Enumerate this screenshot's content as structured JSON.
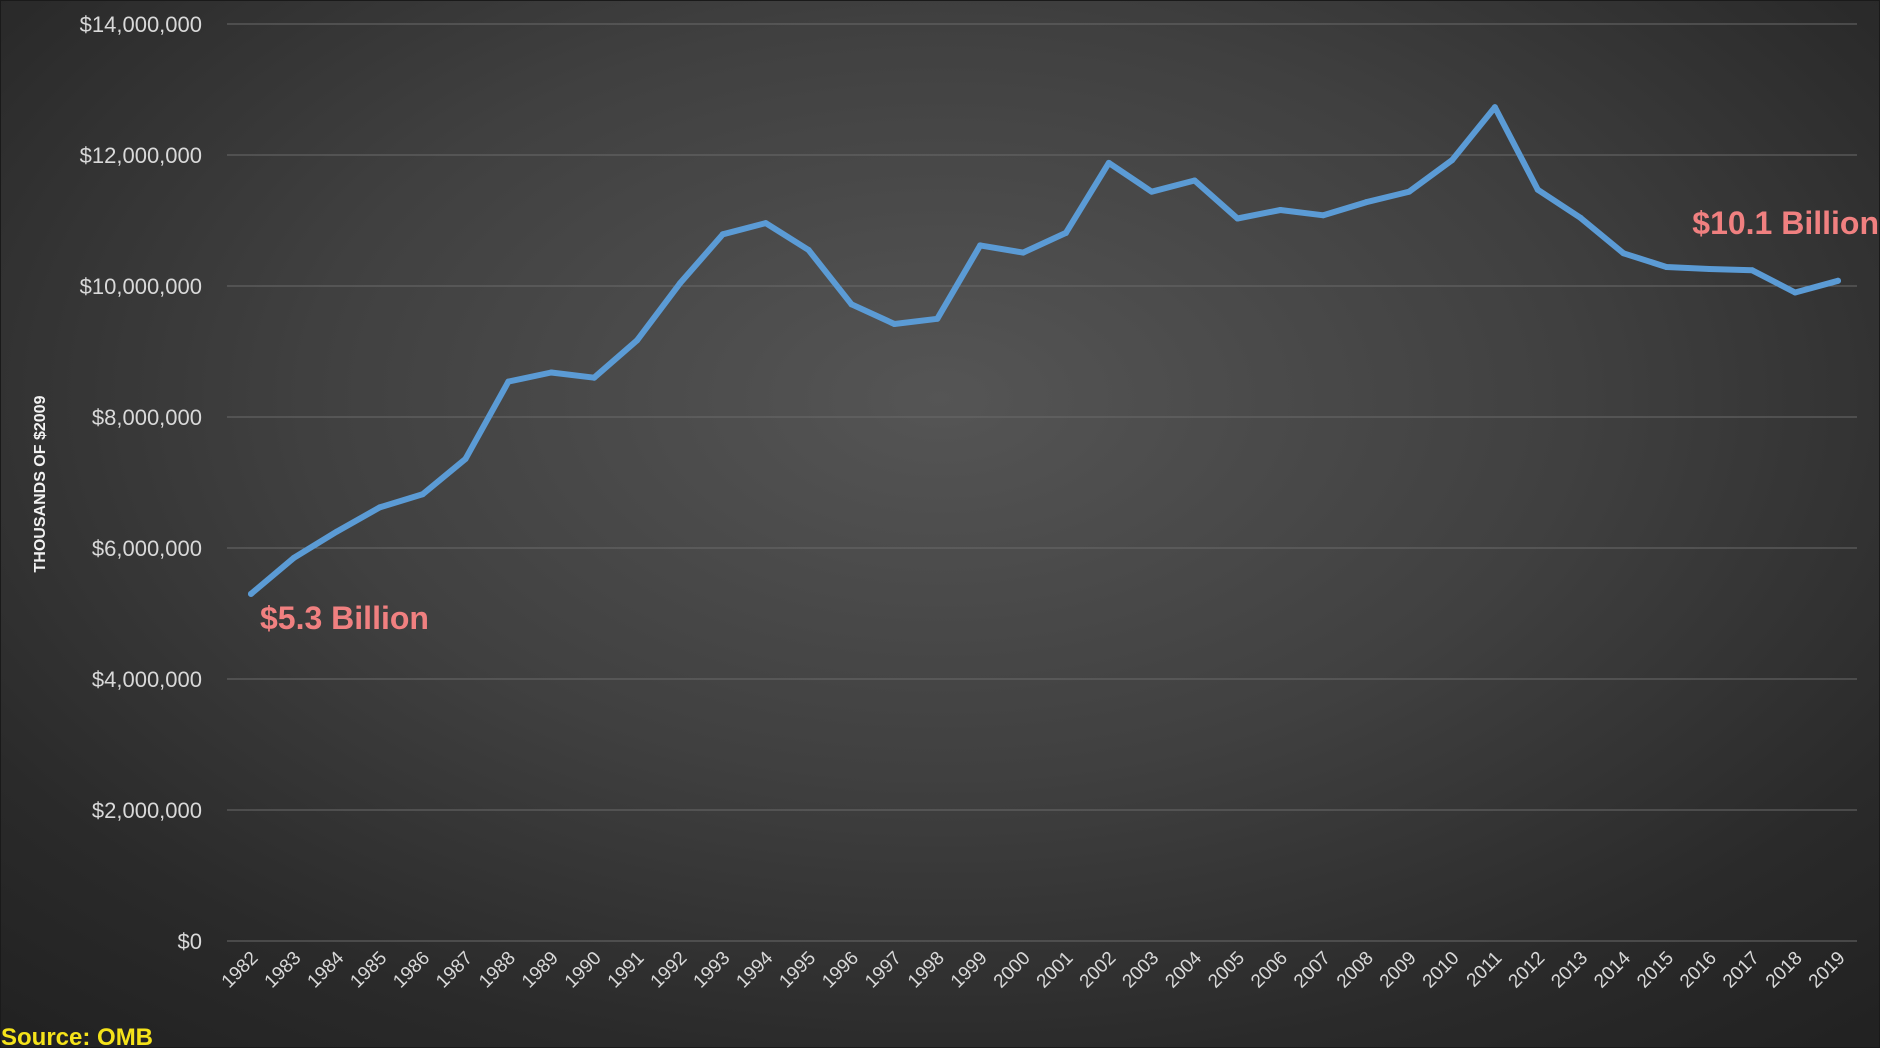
{
  "chart_data": {
    "type": "line",
    "title": "",
    "xlabel": "",
    "ylabel": "THOUSANDS OF $2009",
    "ylim": [
      0,
      14000000
    ],
    "y_ticks": [
      {
        "value": 0,
        "label": "$0"
      },
      {
        "value": 2000000,
        "label": "$2,000,000"
      },
      {
        "value": 4000000,
        "label": "$4,000,000"
      },
      {
        "value": 6000000,
        "label": "$6,000,000"
      },
      {
        "value": 8000000,
        "label": "$8,000,000"
      },
      {
        "value": 10000000,
        "label": "$10,000,000"
      },
      {
        "value": 12000000,
        "label": "$12,000,000"
      },
      {
        "value": 14000000,
        "label": "$14,000,000"
      }
    ],
    "grid": true,
    "legend": "none",
    "categories": [
      "1982",
      "1983",
      "1984",
      "1985",
      "1986",
      "1987",
      "1988",
      "1989",
      "1990",
      "1991",
      "1992",
      "1993",
      "1994",
      "1995",
      "1996",
      "1997",
      "1998",
      "1999",
      "2000",
      "2001",
      "2002",
      "2003",
      "2004",
      "2005",
      "2006",
      "2007",
      "2008",
      "2009",
      "2010",
      "2011",
      "2012",
      "2013",
      "2014",
      "2015",
      "2016",
      "2017",
      "2018",
      "2019"
    ],
    "series": [
      {
        "color": "#5b9bd5",
        "values": [
          5300000,
          5850000,
          6250000,
          6620000,
          6820000,
          7360000,
          8540000,
          8680000,
          8600000,
          9170000,
          10040000,
          10790000,
          10960000,
          10550000,
          9720000,
          9420000,
          9500000,
          10620000,
          10510000,
          10810000,
          11880000,
          11440000,
          11610000,
          11030000,
          11160000,
          11080000,
          11280000,
          11440000,
          11920000,
          12730000,
          11470000,
          11040000,
          10500000,
          10290000,
          10260000,
          10240000,
          9900000,
          10080000
        ]
      }
    ],
    "annotations": [
      {
        "text": "$5.3 Billion",
        "x": "1982",
        "y": 5300000
      },
      {
        "text": "$10.1 Billion",
        "x": "2019",
        "y": 10080000
      }
    ]
  },
  "source_label": "Source: OMB"
}
